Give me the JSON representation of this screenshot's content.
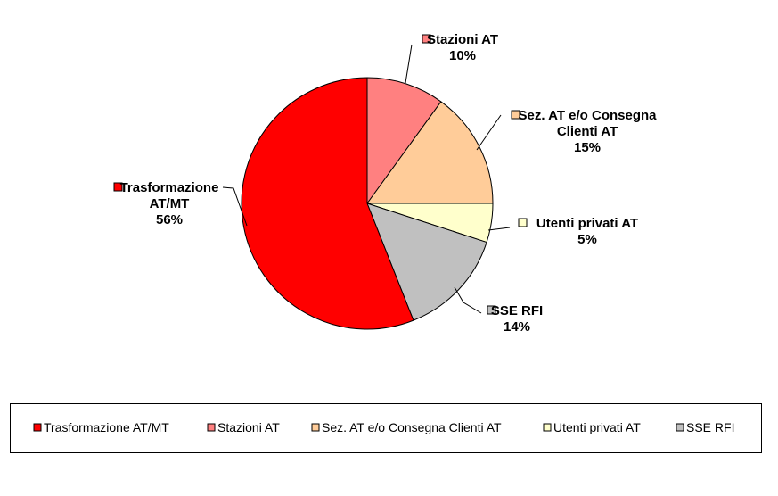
{
  "chart_data": {
    "type": "pie",
    "title": "",
    "start_angle_deg": 0,
    "direction": "clockwise",
    "legend_position": "bottom",
    "slices": [
      {
        "name": "Stazioni AT",
        "value": 10,
        "label_lines": [
          "Stazioni AT"
        ],
        "pct_label": "10%",
        "color": "#ff8080"
      },
      {
        "name": "Sez. AT e/o Consegna Clienti AT",
        "value": 15,
        "label_lines": [
          "Sez. AT e/o Consegna",
          "Clienti AT"
        ],
        "pct_label": "15%",
        "color": "#ffcc99"
      },
      {
        "name": "Utenti privati AT",
        "value": 5,
        "label_lines": [
          "Utenti privati AT"
        ],
        "pct_label": "5%",
        "color": "#ffffcc"
      },
      {
        "name": "SSE RFI",
        "value": 14,
        "label_lines": [
          "SSE RFI"
        ],
        "pct_label": "14%",
        "color": "#c0c0c0"
      },
      {
        "name": "Trasformazione AT/MT",
        "value": 56,
        "label_lines": [
          "Trasformazione",
          "AT/MT"
        ],
        "pct_label": "56%",
        "color": "#ff0000"
      }
    ],
    "legend": [
      "Trasformazione AT/MT",
      "Stazioni AT",
      "Sez. AT e/o Consegna Clienti AT",
      "Utenti privati AT",
      "SSE RFI"
    ]
  }
}
